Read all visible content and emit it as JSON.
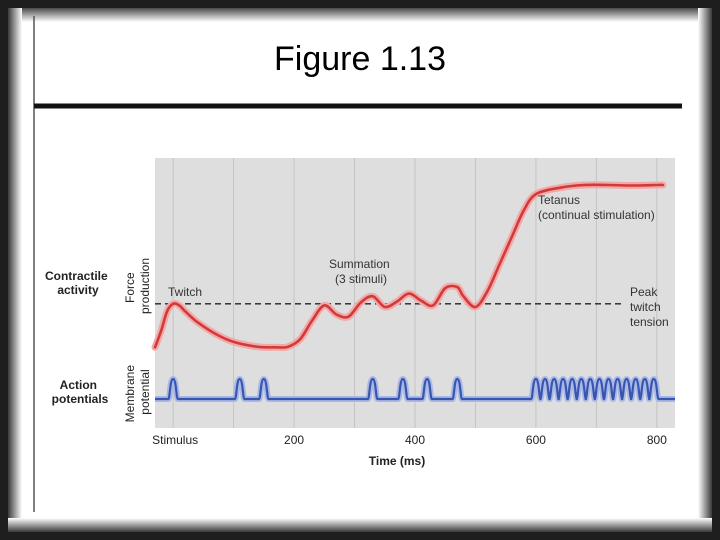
{
  "slide": {
    "title": "Figure 1.13"
  },
  "chart_data": {
    "type": "line",
    "xlabel": "Time (ms)",
    "xticks": [
      "Stimulus",
      "200",
      "400",
      "600",
      "800"
    ],
    "xtick_values": [
      0,
      200,
      400,
      600,
      800
    ],
    "xlim": [
      -30,
      830
    ],
    "row_labels": {
      "contractile": [
        "Contractile",
        "activity"
      ],
      "action": [
        "Action",
        "potentials"
      ]
    },
    "axis_labels": {
      "force": [
        "Force",
        "production"
      ],
      "membrane": [
        "Membrane",
        "potential"
      ]
    },
    "annotations": {
      "twitch": [
        "Twitch"
      ],
      "summation": [
        "Summation",
        "(3 stimuli)"
      ],
      "tetanus": [
        "Tetanus",
        "(continual stimulation)"
      ],
      "peak": [
        "Peak",
        "twitch",
        "tension"
      ]
    },
    "force_series": {
      "x": [
        -30,
        -20,
        -10,
        0,
        10,
        20,
        40,
        70,
        100,
        140,
        170,
        190,
        210,
        230,
        250,
        270,
        290,
        310,
        330,
        350,
        370,
        390,
        410,
        430,
        450,
        470,
        480,
        500,
        520,
        540,
        560,
        580,
        600,
        640,
        680,
        720,
        760,
        800,
        810
      ],
      "y": [
        0.05,
        0.35,
        0.72,
        0.86,
        0.83,
        0.72,
        0.52,
        0.3,
        0.15,
        0.06,
        0.05,
        0.06,
        0.2,
        0.55,
        0.83,
        0.66,
        0.62,
        0.88,
        1.0,
        0.8,
        0.9,
        1.05,
        0.92,
        0.83,
        1.15,
        1.17,
        1.0,
        0.8,
        1.1,
        1.6,
        2.1,
        2.6,
        2.9,
        3.02,
        3.07,
        3.07,
        3.06,
        3.07,
        3.07
      ],
      "peak_twitch_tension": 0.86
    },
    "action_potentials_ms": [
      0,
      110,
      150,
      330,
      380,
      420,
      470,
      600,
      615,
      630,
      645,
      660,
      675,
      690,
      705,
      720,
      735,
      750,
      765,
      780,
      795
    ]
  }
}
